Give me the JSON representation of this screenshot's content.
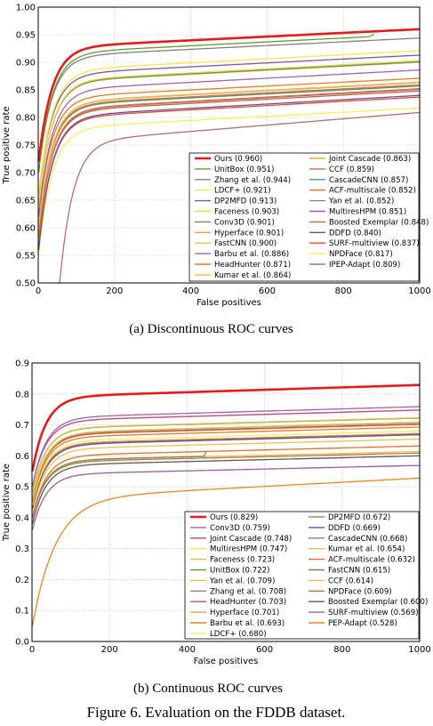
{
  "figure_caption": "Figure 6. Evaluation on the FDDB dataset.",
  "chart_data": [
    {
      "type": "line",
      "caption": "(a) Discontinuous ROC curves",
      "xlabel": "False positives",
      "ylabel": "True positive rate",
      "xlim": [
        0,
        1000
      ],
      "ylim": [
        0.5,
        1.0
      ],
      "x_ticks": [
        "0",
        "200",
        "400",
        "600",
        "800",
        "1000"
      ],
      "y_ticks": [
        "0.50",
        "0.55",
        "0.60",
        "0.65",
        "0.70",
        "0.75",
        "0.80",
        "0.85",
        "0.90",
        "0.95",
        "1.00"
      ],
      "grid": true,
      "legend_position": "lower-right",
      "series": [
        {
          "name": "Ours (0.960)",
          "color": "#e41a1c",
          "final": 0.96,
          "start": 0.72,
          "highlight": true
        },
        {
          "name": "UnitBox (0.951)",
          "color": "#5aa02c",
          "final": 0.951,
          "start": 0.7,
          "x_end": 880
        },
        {
          "name": "Zhang et al. (0.944)",
          "color": "#7f7f7f",
          "final": 0.944,
          "start": 0.7
        },
        {
          "name": "LDCF+ (0.921)",
          "color": "#f6e84a",
          "final": 0.921,
          "start": 0.66
        },
        {
          "name": "DP2MFD (0.913)",
          "color": "#8c4f9c",
          "final": 0.913,
          "start": 0.66
        },
        {
          "name": "Faceness (0.903)",
          "color": "#e8d94f",
          "final": 0.903,
          "start": 0.64
        },
        {
          "name": "Conv3D (0.901)",
          "color": "#6b8e5a",
          "final": 0.901,
          "start": 0.64
        },
        {
          "name": "Hyperface (0.901)",
          "color": "#e8a23a",
          "final": 0.901,
          "start": 0.64
        },
        {
          "name": "FastCNN (0.900)",
          "color": "#d9c74f",
          "final": 0.9,
          "start": 0.64
        },
        {
          "name": "Barbu et al. (0.886)",
          "color": "#a062a8",
          "final": 0.886,
          "start": 0.62
        },
        {
          "name": "HeadHunter (0.871)",
          "color": "#e07b27",
          "final": 0.871,
          "start": 0.62
        },
        {
          "name": "Kumar et al. (0.864)",
          "color": "#f0b94a",
          "final": 0.864,
          "start": 0.6
        },
        {
          "name": "Joint Cascade (0.863)",
          "color": "#e3a44a",
          "final": 0.863,
          "start": 0.6
        },
        {
          "name": "CCF (0.859)",
          "color": "#c76e3a",
          "final": 0.859,
          "start": 0.6
        },
        {
          "name": "CascadeCNN (0.857)",
          "color": "#4a9a8a",
          "final": 0.857,
          "start": 0.6
        },
        {
          "name": "ACF-multiscale (0.852)",
          "color": "#e86a2a",
          "final": 0.852,
          "start": 0.58
        },
        {
          "name": "Yan et al. (0.852)",
          "color": "#8a8a8a",
          "final": 0.852,
          "start": 0.58
        },
        {
          "name": "MultiresHPM (0.851)",
          "color": "#9a5aa8",
          "final": 0.851,
          "start": 0.58
        },
        {
          "name": "Boosted Exemplar (0.848)",
          "color": "#b86a3a",
          "final": 0.848,
          "start": 0.58
        },
        {
          "name": "DDFD (0.840)",
          "color": "#6a4a9a",
          "final": 0.84,
          "start": 0.56
        },
        {
          "name": "SURF-multiview (0.837)",
          "color": "#d8502a",
          "final": 0.837,
          "start": 0.56
        },
        {
          "name": "NPDFace (0.817)",
          "color": "#f8ee5a",
          "final": 0.817,
          "start": 0.55
        },
        {
          "name": "IPEP-Adapt (0.809)",
          "color": "#b2706a",
          "final": 0.809,
          "start": 0.4,
          "x_start": 45
        }
      ]
    },
    {
      "type": "line",
      "caption": "(b) Continuous ROC curves",
      "xlabel": "False positives",
      "ylabel": "True positive rate",
      "xlim": [
        0,
        1000
      ],
      "ylim": [
        0.0,
        0.9
      ],
      "x_ticks": [
        "0",
        "200",
        "400",
        "600",
        "800",
        "1000"
      ],
      "y_ticks": [
        "0.0",
        "0.1",
        "0.2",
        "0.3",
        "0.4",
        "0.5",
        "0.6",
        "0.7",
        "0.8",
        "0.9"
      ],
      "grid": true,
      "legend_position": "lower-right",
      "series": [
        {
          "name": "Ours (0.829)",
          "color": "#e41a1c",
          "final": 0.829,
          "start": 0.55,
          "highlight": true
        },
        {
          "name": "Conv3D (0.759)",
          "color": "#a062a8",
          "final": 0.759,
          "start": 0.5
        },
        {
          "name": "Joint Cascade (0.748)",
          "color": "#b04a9a",
          "final": 0.748,
          "start": 0.5
        },
        {
          "name": "MultiresHPM (0.747)",
          "color": "#f6e84a",
          "final": 0.747,
          "start": 0.5
        },
        {
          "name": "Faceness (0.723)",
          "color": "#e3b84a",
          "final": 0.723,
          "start": 0.48
        },
        {
          "name": "UnitBox (0.722)",
          "color": "#5aa02c",
          "final": 0.722,
          "start": 0.48
        },
        {
          "name": "Yan et al. (0.709)",
          "color": "#d8c24a",
          "final": 0.709,
          "start": 0.46
        },
        {
          "name": "Zhang et al. (0.708)",
          "color": "#8a8a8a",
          "final": 0.708,
          "start": 0.46
        },
        {
          "name": "HeadHunter (0.703)",
          "color": "#c0504d",
          "final": 0.703,
          "start": 0.46
        },
        {
          "name": "Hyperface (0.701)",
          "color": "#e8a23a",
          "final": 0.701,
          "start": 0.46
        },
        {
          "name": "Barbu et al. (0.693)",
          "color": "#e07b27",
          "final": 0.693,
          "start": 0.45
        },
        {
          "name": "LDCF+ (0.680)",
          "color": "#f8ee5a",
          "final": 0.68,
          "start": 0.44
        },
        {
          "name": "DP2MFD (0.672)",
          "color": "#c9834a",
          "final": 0.672,
          "start": 0.44
        },
        {
          "name": "DDFD (0.669)",
          "color": "#6a4a9a",
          "final": 0.669,
          "start": 0.43
        },
        {
          "name": "CascadeCNN (0.668)",
          "color": "#7f7f7f",
          "final": 0.668,
          "start": 0.43
        },
        {
          "name": "Kumar et al. (0.654)",
          "color": "#e8c24a",
          "final": 0.654,
          "start": 0.42
        },
        {
          "name": "ACF-multiscale (0.632)",
          "color": "#e86a2a",
          "final": 0.632,
          "start": 0.4
        },
        {
          "name": "FastCNN (0.615)",
          "color": "#6b8e5a",
          "final": 0.615,
          "start": 0.4,
          "x_end": 450
        },
        {
          "name": "CCF (0.614)",
          "color": "#d9c74f",
          "final": 0.614,
          "start": 0.4
        },
        {
          "name": "NPDFace (0.609)",
          "color": "#c76e3a",
          "final": 0.609,
          "start": 0.4
        },
        {
          "name": "Boosted Exemplar (0.600)",
          "color": "#5a5a5a",
          "final": 0.6,
          "start": 0.38
        },
        {
          "name": "SURF-multiview (0.569)",
          "color": "#9a5aa8",
          "final": 0.569,
          "start": 0.36
        },
        {
          "name": "PEP-Adapt (0.528)",
          "color": "#e8861a",
          "final": 0.528,
          "start": 0.05,
          "slow": true
        }
      ]
    }
  ]
}
